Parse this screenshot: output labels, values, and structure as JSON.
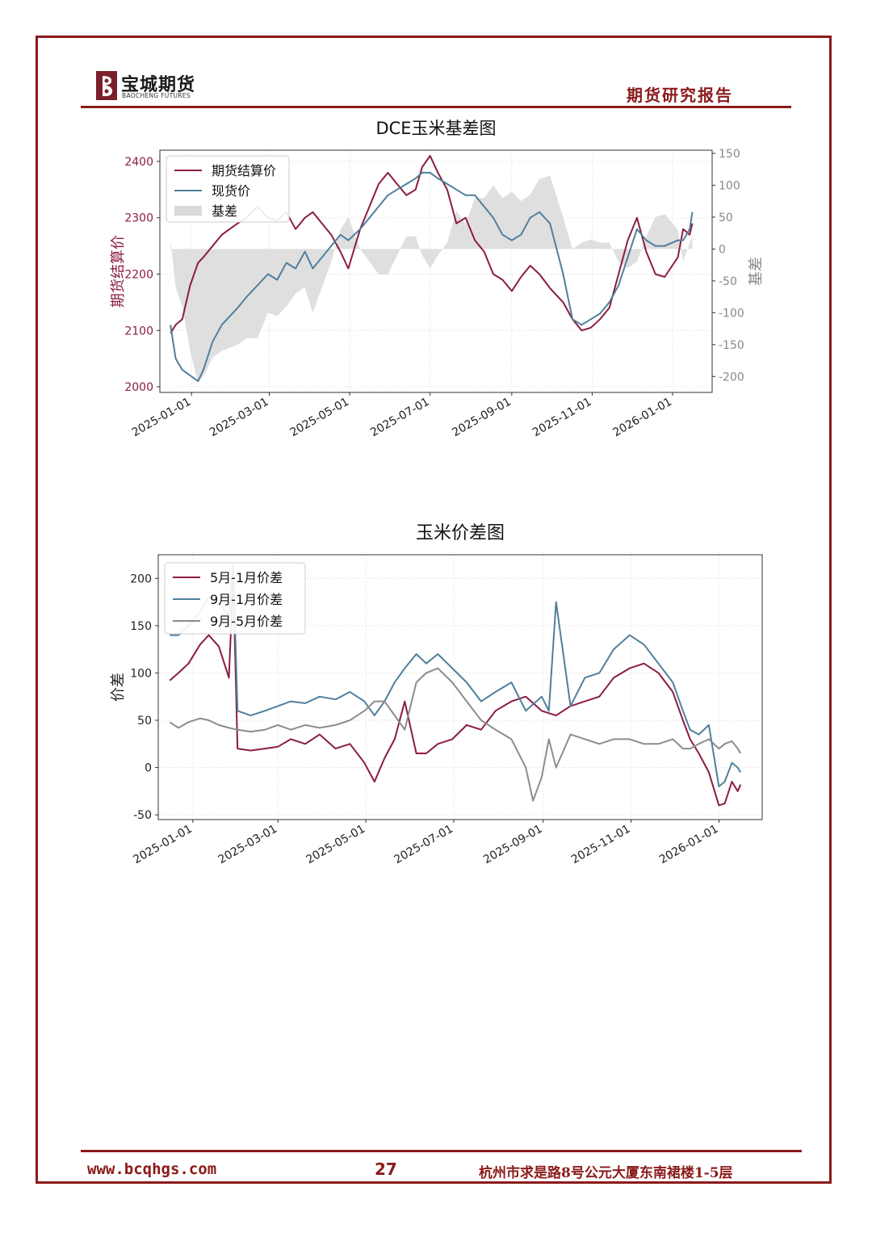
{
  "header": {
    "logo_cn": "宝城期货",
    "logo_en": "BAOCHENG FUTURES",
    "report_title": "期货研究报告"
  },
  "footer": {
    "url": "www.bcqhgs.com",
    "page": "27",
    "address": "杭州市求是路8号公元大厦东南裙楼1-5层"
  },
  "colors": {
    "brand": "#8b1a1a",
    "futures": "#8b1c42",
    "spot": "#4f7f9c",
    "basis": "#d9d9d9",
    "spread95": "#8c8c8c"
  },
  "chart_data": [
    {
      "type": "line",
      "title": "DCE玉米基差图",
      "ylabel": "期货结算价",
      "y2label": "基差",
      "ylim": [
        1990,
        2420
      ],
      "y2lim": [
        -225,
        155
      ],
      "yticks": [
        2000,
        2100,
        2200,
        2300,
        2400
      ],
      "y2ticks": [
        -200,
        -150,
        -100,
        -50,
        0,
        50,
        100,
        150
      ],
      "xlim": [
        "2024-12-08",
        "2026-01-31"
      ],
      "xticks": [
        "2025-01-01",
        "2025-03-01",
        "2025-05-01",
        "2025-07-01",
        "2025-09-01",
        "2025-11-01",
        "2026-01-01"
      ],
      "legend_position": "top-left",
      "series": [
        {
          "name": "期货结算价",
          "axis": "left",
          "x": [
            "2024-12-16",
            "2024-12-20",
            "2024-12-25",
            "2024-12-31",
            "2025-01-06",
            "2025-01-10",
            "2025-01-17",
            "2025-01-24",
            "2025-02-05",
            "2025-02-12",
            "2025-02-20",
            "2025-02-28",
            "2025-03-07",
            "2025-03-14",
            "2025-03-21",
            "2025-03-28",
            "2025-04-03",
            "2025-04-10",
            "2025-04-17",
            "2025-04-24",
            "2025-04-30",
            "2025-05-09",
            "2025-05-16",
            "2025-05-23",
            "2025-05-30",
            "2025-06-06",
            "2025-06-13",
            "2025-06-20",
            "2025-06-25",
            "2025-07-01",
            "2025-07-07",
            "2025-07-14",
            "2025-07-21",
            "2025-07-28",
            "2025-08-04",
            "2025-08-11",
            "2025-08-18",
            "2025-08-25",
            "2025-09-01",
            "2025-09-08",
            "2025-09-15",
            "2025-09-22",
            "2025-09-30",
            "2025-10-10",
            "2025-10-17",
            "2025-10-24",
            "2025-10-31",
            "2025-11-07",
            "2025-11-14",
            "2025-11-21",
            "2025-11-28",
            "2025-12-05",
            "2025-12-12",
            "2025-12-19",
            "2025-12-26",
            "2026-01-05",
            "2026-01-09",
            "2026-01-14",
            "2026-01-16"
          ],
          "values": [
            2095,
            2110,
            2120,
            2180,
            2220,
            2230,
            2250,
            2270,
            2290,
            2300,
            2320,
            2300,
            2295,
            2310,
            2280,
            2300,
            2310,
            2290,
            2270,
            2240,
            2210,
            2280,
            2320,
            2360,
            2380,
            2360,
            2340,
            2350,
            2390,
            2410,
            2380,
            2350,
            2290,
            2300,
            2260,
            2240,
            2200,
            2190,
            2170,
            2195,
            2215,
            2200,
            2175,
            2150,
            2120,
            2100,
            2105,
            2120,
            2140,
            2200,
            2260,
            2300,
            2240,
            2200,
            2195,
            2230,
            2280,
            2270,
            2290
          ]
        },
        {
          "name": "现货价",
          "axis": "left",
          "x": [
            "2024-12-16",
            "2024-12-20",
            "2024-12-25",
            "2024-12-31",
            "2025-01-06",
            "2025-01-10",
            "2025-01-17",
            "2025-01-24",
            "2025-02-05",
            "2025-02-12",
            "2025-02-20",
            "2025-02-28",
            "2025-03-07",
            "2025-03-14",
            "2025-03-21",
            "2025-03-28",
            "2025-04-03",
            "2025-04-10",
            "2025-04-17",
            "2025-04-24",
            "2025-04-30",
            "2025-05-09",
            "2025-05-16",
            "2025-05-23",
            "2025-05-30",
            "2025-06-06",
            "2025-06-13",
            "2025-06-20",
            "2025-06-25",
            "2025-07-01",
            "2025-07-07",
            "2025-07-14",
            "2025-07-21",
            "2025-07-28",
            "2025-08-04",
            "2025-08-11",
            "2025-08-18",
            "2025-08-25",
            "2025-09-01",
            "2025-09-08",
            "2025-09-15",
            "2025-09-22",
            "2025-09-30",
            "2025-10-10",
            "2025-10-17",
            "2025-10-24",
            "2025-10-31",
            "2025-11-07",
            "2025-11-14",
            "2025-11-21",
            "2025-11-28",
            "2025-12-05",
            "2025-12-12",
            "2025-12-19",
            "2025-12-26",
            "2026-01-05",
            "2026-01-09",
            "2026-01-14",
            "2026-01-16"
          ],
          "values": [
            2110,
            2050,
            2030,
            2020,
            2010,
            2030,
            2080,
            2110,
            2140,
            2160,
            2180,
            2200,
            2190,
            2220,
            2210,
            2240,
            2210,
            2230,
            2250,
            2270,
            2260,
            2280,
            2300,
            2320,
            2340,
            2350,
            2360,
            2370,
            2380,
            2380,
            2370,
            2360,
            2350,
            2340,
            2340,
            2320,
            2300,
            2270,
            2260,
            2270,
            2300,
            2310,
            2290,
            2200,
            2120,
            2110,
            2120,
            2130,
            2150,
            2180,
            2230,
            2280,
            2260,
            2250,
            2250,
            2260,
            2260,
            2280,
            2310
          ]
        }
      ],
      "basis": {
        "name": "基差",
        "axis": "right",
        "x": [
          "2024-12-16",
          "2024-12-20",
          "2024-12-25",
          "2024-12-31",
          "2025-01-06",
          "2025-01-10",
          "2025-01-17",
          "2025-01-24",
          "2025-02-05",
          "2025-02-12",
          "2025-02-20",
          "2025-02-28",
          "2025-03-07",
          "2025-03-14",
          "2025-03-21",
          "2025-03-28",
          "2025-04-03",
          "2025-04-10",
          "2025-04-17",
          "2025-04-24",
          "2025-04-30",
          "2025-05-09",
          "2025-05-16",
          "2025-05-23",
          "2025-05-30",
          "2025-06-06",
          "2025-06-13",
          "2025-06-20",
          "2025-06-25",
          "2025-07-01",
          "2025-07-07",
          "2025-07-14",
          "2025-07-21",
          "2025-07-28",
          "2025-08-04",
          "2025-08-11",
          "2025-08-18",
          "2025-08-25",
          "2025-09-01",
          "2025-09-08",
          "2025-09-15",
          "2025-09-22",
          "2025-09-30",
          "2025-10-10",
          "2025-10-17",
          "2025-10-24",
          "2025-10-31",
          "2025-11-07",
          "2025-11-14",
          "2025-11-21",
          "2025-11-28",
          "2025-12-05",
          "2025-12-12",
          "2025-12-19",
          "2025-12-26",
          "2026-01-05",
          "2026-01-09",
          "2026-01-14",
          "2026-01-16"
        ],
        "values": [
          15,
          -60,
          -90,
          -160,
          -210,
          -200,
          -170,
          -160,
          -150,
          -140,
          -140,
          -100,
          -105,
          -90,
          -70,
          -60,
          -100,
          -60,
          -20,
          30,
          50,
          0,
          -20,
          -40,
          -40,
          -10,
          20,
          20,
          -10,
          -30,
          -10,
          10,
          60,
          40,
          80,
          80,
          100,
          80,
          90,
          75,
          85,
          110,
          115,
          50,
          0,
          10,
          15,
          10,
          10,
          -20,
          -30,
          -20,
          20,
          50,
          55,
          30,
          -20,
          10,
          20
        ]
      }
    },
    {
      "type": "line",
      "title": "玉米价差图",
      "ylabel": "价差",
      "ylim": [
        -55,
        225
      ],
      "yticks": [
        -50,
        0,
        50,
        100,
        150,
        200
      ],
      "xlim": [
        "2024-12-08",
        "2026-01-31"
      ],
      "xticks": [
        "2025-01-01",
        "2025-03-01",
        "2025-05-01",
        "2025-07-01",
        "2025-09-01",
        "2025-11-01",
        "2026-01-01"
      ],
      "legend_position": "top-left",
      "series": [
        {
          "name": "5月-1月价差",
          "x": [
            "2024-12-16",
            "2024-12-22",
            "2024-12-29",
            "2025-01-06",
            "2025-01-12",
            "2025-01-19",
            "2025-01-26",
            "2025-01-29",
            "2025-02-01",
            "2025-02-10",
            "2025-02-20",
            "2025-03-01",
            "2025-03-10",
            "2025-03-20",
            "2025-03-30",
            "2025-04-10",
            "2025-04-20",
            "2025-04-30",
            "2025-05-07",
            "2025-05-14",
            "2025-05-21",
            "2025-05-28",
            "2025-06-05",
            "2025-06-12",
            "2025-06-20",
            "2025-06-30",
            "2025-07-10",
            "2025-07-20",
            "2025-07-30",
            "2025-08-10",
            "2025-08-20",
            "2025-08-31",
            "2025-09-10",
            "2025-09-20",
            "2025-09-30",
            "2025-10-10",
            "2025-10-20",
            "2025-10-31",
            "2025-11-10",
            "2025-11-20",
            "2025-11-30",
            "2025-12-07",
            "2025-12-12",
            "2025-12-18",
            "2025-12-25",
            "2026-01-01",
            "2026-01-05",
            "2026-01-10",
            "2026-01-14",
            "2026-01-16"
          ],
          "values": [
            92,
            100,
            110,
            130,
            140,
            128,
            95,
            200,
            20,
            18,
            20,
            22,
            30,
            25,
            35,
            20,
            25,
            5,
            -15,
            10,
            30,
            70,
            15,
            15,
            25,
            30,
            45,
            40,
            60,
            70,
            75,
            60,
            55,
            65,
            70,
            75,
            95,
            105,
            110,
            100,
            80,
            50,
            30,
            15,
            -5,
            -40,
            -38,
            -15,
            -25,
            -18
          ]
        },
        {
          "name": "9月-1月价差",
          "x": [
            "2024-12-16",
            "2024-12-22",
            "2024-12-29",
            "2025-01-06",
            "2025-01-12",
            "2025-01-19",
            "2025-01-26",
            "2025-01-29",
            "2025-02-01",
            "2025-02-10",
            "2025-02-20",
            "2025-03-01",
            "2025-03-10",
            "2025-03-20",
            "2025-03-30",
            "2025-04-10",
            "2025-04-20",
            "2025-04-30",
            "2025-05-07",
            "2025-05-14",
            "2025-05-21",
            "2025-05-28",
            "2025-06-05",
            "2025-06-12",
            "2025-06-20",
            "2025-06-30",
            "2025-07-10",
            "2025-07-20",
            "2025-07-30",
            "2025-08-10",
            "2025-08-20",
            "2025-08-31",
            "2025-09-05",
            "2025-09-10",
            "2025-09-20",
            "2025-09-30",
            "2025-10-10",
            "2025-10-20",
            "2025-10-31",
            "2025-11-10",
            "2025-11-20",
            "2025-11-30",
            "2025-12-07",
            "2025-12-12",
            "2025-12-18",
            "2025-12-25",
            "2026-01-01",
            "2026-01-05",
            "2026-01-10",
            "2026-01-14",
            "2026-01-16"
          ],
          "values": [
            140,
            140,
            150,
            165,
            180,
            175,
            160,
            215,
            60,
            55,
            60,
            65,
            70,
            68,
            75,
            72,
            80,
            70,
            55,
            70,
            90,
            105,
            120,
            110,
            120,
            105,
            90,
            70,
            80,
            90,
            60,
            75,
            60,
            175,
            65,
            95,
            100,
            125,
            140,
            130,
            110,
            90,
            60,
            40,
            35,
            45,
            -20,
            -15,
            5,
            0,
            -5
          ]
        },
        {
          "name": "9月-5月价差",
          "x": [
            "2024-12-16",
            "2024-12-22",
            "2024-12-29",
            "2025-01-06",
            "2025-01-12",
            "2025-01-19",
            "2025-01-26",
            "2025-02-01",
            "2025-02-10",
            "2025-02-20",
            "2025-03-01",
            "2025-03-10",
            "2025-03-20",
            "2025-03-30",
            "2025-04-10",
            "2025-04-20",
            "2025-04-30",
            "2025-05-07",
            "2025-05-14",
            "2025-05-21",
            "2025-05-28",
            "2025-06-05",
            "2025-06-12",
            "2025-06-20",
            "2025-06-30",
            "2025-07-10",
            "2025-07-20",
            "2025-07-30",
            "2025-08-10",
            "2025-08-20",
            "2025-08-25",
            "2025-08-31",
            "2025-09-05",
            "2025-09-10",
            "2025-09-20",
            "2025-09-30",
            "2025-10-10",
            "2025-10-20",
            "2025-10-31",
            "2025-11-10",
            "2025-11-20",
            "2025-11-30",
            "2025-12-07",
            "2025-12-12",
            "2025-12-18",
            "2025-12-25",
            "2026-01-01",
            "2026-01-05",
            "2026-01-10",
            "2026-01-14",
            "2026-01-16"
          ],
          "values": [
            48,
            42,
            48,
            52,
            50,
            45,
            42,
            40,
            38,
            40,
            45,
            40,
            45,
            42,
            45,
            50,
            60,
            70,
            70,
            55,
            40,
            90,
            100,
            105,
            90,
            70,
            50,
            40,
            30,
            0,
            -35,
            -10,
            30,
            0,
            35,
            30,
            25,
            30,
            30,
            25,
            25,
            30,
            20,
            20,
            25,
            30,
            20,
            25,
            28,
            20,
            15
          ]
        }
      ]
    }
  ]
}
